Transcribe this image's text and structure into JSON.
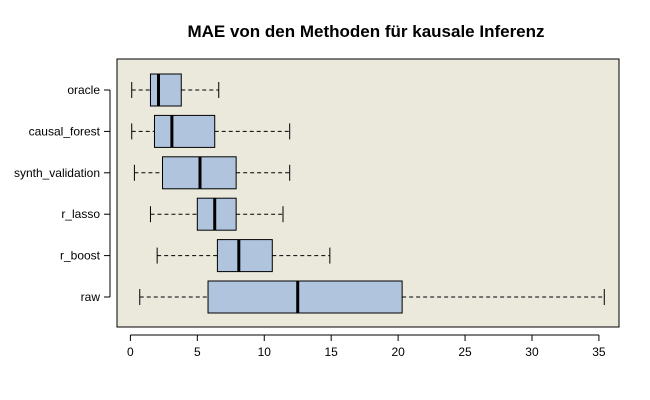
{
  "chart_data": {
    "type": "boxplot",
    "orientation": "horizontal",
    "title": "MAE von den Methoden für kausale Inferenz",
    "xlabel": "",
    "ylabel": "",
    "xlim": [
      -1,
      36.5
    ],
    "xticks": [
      0,
      5,
      10,
      15,
      20,
      25,
      30,
      35
    ],
    "xtick_labels": [
      "0",
      "5",
      "10",
      "15",
      "20",
      "25",
      "30",
      "35"
    ],
    "categories": [
      "oracle",
      "causal_forest",
      "synth_validation",
      "r_lasso",
      "r_boost",
      "raw"
    ],
    "series": [
      {
        "category": "oracle",
        "whisker_low": 0.1,
        "q1": 1.5,
        "median": 2.1,
        "q3": 3.8,
        "whisker_high": 6.6
      },
      {
        "category": "causal_forest",
        "whisker_low": 0.1,
        "q1": 1.8,
        "median": 3.1,
        "q3": 6.3,
        "whisker_high": 11.9
      },
      {
        "category": "synth_validation",
        "whisker_low": 0.3,
        "q1": 2.4,
        "median": 5.2,
        "q3": 7.9,
        "whisker_high": 11.9
      },
      {
        "category": "r_lasso",
        "whisker_low": 1.5,
        "q1": 5.0,
        "median": 6.3,
        "q3": 7.9,
        "whisker_high": 11.4
      },
      {
        "category": "r_boost",
        "whisker_low": 2.0,
        "q1": 6.5,
        "median": 8.1,
        "q3": 10.6,
        "whisker_high": 14.9
      },
      {
        "category": "raw",
        "whisker_low": 0.7,
        "q1": 5.8,
        "median": 12.5,
        "q3": 20.3,
        "whisker_high": 35.4
      }
    ],
    "grid": false,
    "colors": {
      "panel_background": "#ebe9dc",
      "box_fill": "#b0c4de",
      "stroke": "#000000"
    }
  }
}
